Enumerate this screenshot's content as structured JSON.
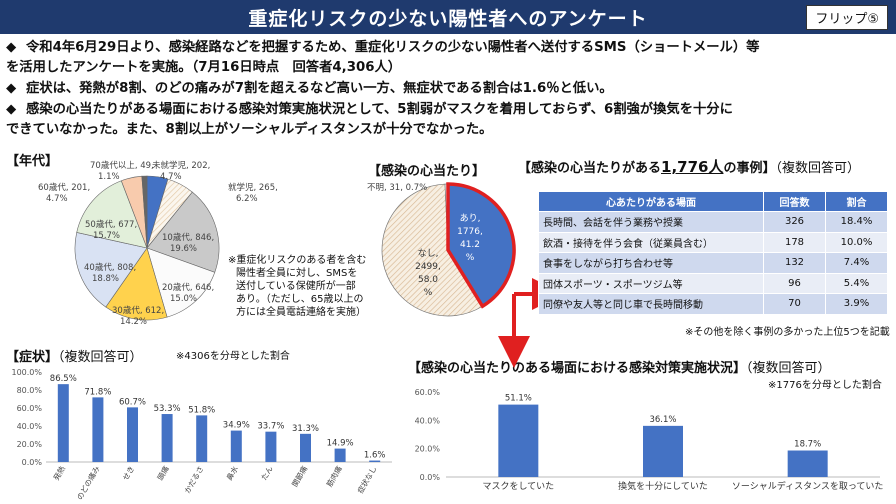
{
  "header": {
    "title": "重症化リスクの少ない陽性者へのアンケート",
    "flip_label": "フリップ⑤"
  },
  "bullets": [
    {
      "line1": "令和4年6月29日より、感染経路などを把握するため、重症化リスクの少ない陽性者へ送付するSMS（ショートメール）等",
      "line2": "を活用したアンケートを実施。（7月16日時点　回答者4,306人）"
    },
    {
      "line1": "症状は、発熱が8割、のどの痛みが7割を超えるなど高い一方、無症状である割合は1.6％と低い。"
    },
    {
      "line1": "感染の心当たりがある場面における感染対策実施状況として、5割弱がマスクを着用しておらず、6割強が換気を十分に",
      "line2": "できていなかった。また、8割以上がソーシャルディスタンスが十分でなかった。"
    }
  ],
  "sections": {
    "age": "【年代】",
    "infection": "【感染の心当たり】",
    "cases_pre": "【感染の心当たりがある",
    "cases_num": "1,776人",
    "cases_post": "の事例】",
    "cases_note": "（複数回答可）",
    "symptom": "【症状】",
    "symptom_note": "（複数回答可）",
    "symptom_sub": "※4306を分母とした割合",
    "measures": "【感染の心当たりのある場面における感染対策実施状況】",
    "measures_note": "（複数回答可）",
    "measures_sub": "※1776を分母とした割合"
  },
  "age_note": [
    "※重症化リスクのある者を含む",
    "陽性者全員に対し、SMSを",
    "送付している保健所が一部",
    "あり。（ただし、65歳以上の",
    "方には全員電話連絡を実施）"
  ],
  "table": {
    "headers": [
      "心あたりがある場面",
      "回答数",
      "割合"
    ],
    "rows": [
      [
        "長時間、会話を伴う業務や授業",
        "326",
        "18.4%"
      ],
      [
        "飲酒・接待を伴う会食（従業員含む）",
        "178",
        "10.0%"
      ],
      [
        "食事をしながら打ち合わせ等",
        "132",
        "7.4%"
      ],
      [
        "団体スポーツ・スポーツジム等",
        "96",
        "5.4%"
      ],
      [
        "同僚や友人等と同じ車で長時間移動",
        "70",
        "3.9%"
      ]
    ],
    "footnote": "※その他を除く事例の多かった上位5つを記載"
  },
  "colors": {
    "header": "#1f3a6e",
    "accent": "#1f3a6e",
    "red": "#e02020",
    "blue": "#4472c4"
  },
  "chart_data": [
    {
      "type": "pie",
      "title": "【年代】",
      "slices": [
        {
          "name": "未就学児",
          "value": 202,
          "pct": "4.7%",
          "label": "未就学児, 202, 4.7%"
        },
        {
          "name": "就学児",
          "value": 265,
          "pct": "6.2%",
          "label": "就学児, 265, 6.2%"
        },
        {
          "name": "10歳代",
          "value": 846,
          "pct": "19.6%",
          "label": "10歳代, 846, 19.6%"
        },
        {
          "name": "20歳代",
          "value": 646,
          "pct": "15.0%",
          "label": "20歳代, 646, 15.0%"
        },
        {
          "name": "30歳代",
          "value": 612,
          "pct": "14.2%",
          "label": "30歳代, 612, 14.2%"
        },
        {
          "name": "40歳代",
          "value": 808,
          "pct": "18.8%",
          "label": "40歳代, 808, 18.8%"
        },
        {
          "name": "50歳代",
          "value": 677,
          "pct": "15.7%",
          "label": "50歳代, 677, 15.7%"
        },
        {
          "name": "60歳代",
          "value": 201,
          "pct": "4.7%",
          "label": "60歳代, 201, 4.7%"
        },
        {
          "name": "70歳代以上",
          "value": 49,
          "pct": "1.1%",
          "label": "70歳代以上, 49, 1.1%"
        }
      ]
    },
    {
      "type": "pie",
      "title": "【感染の心当たり】",
      "slices": [
        {
          "name": "あり",
          "value": 1776,
          "pct": "41.2%"
        },
        {
          "name": "なし",
          "value": 2499,
          "pct": "58.0%"
        },
        {
          "name": "不明",
          "value": 31,
          "pct": "0.7%"
        }
      ]
    },
    {
      "type": "bar",
      "title": "【症状】",
      "categories": [
        "発熱",
        "のどの痛み",
        "せき",
        "頭痛",
        "かだるさ",
        "鼻水",
        "たん",
        "関節痛",
        "筋肉痛",
        "症状なし"
      ],
      "values": [
        86.5,
        71.8,
        60.7,
        53.3,
        51.8,
        34.9,
        33.7,
        31.3,
        14.9,
        1.6
      ],
      "labels": [
        "86.5%",
        "71.8%",
        "60.7%",
        "53.3%",
        "51.8%",
        "34.9%",
        "33.7%",
        "31.3%",
        "14.9%",
        "1.6%"
      ],
      "yticks": [
        "100.0%",
        "80.0%",
        "60.0%",
        "40.0%",
        "20.0%",
        "0.0%"
      ],
      "ylim": [
        0,
        100
      ]
    },
    {
      "type": "bar",
      "title": "【感染の心当たりのある場面における感染対策実施状況】",
      "categories": [
        "マスクをしていた",
        "換気を十分にしていた",
        "ソーシャルディスタンスを取っていた"
      ],
      "values": [
        51.1,
        36.1,
        18.7
      ],
      "labels": [
        "51.1%",
        "36.1%",
        "18.7%"
      ],
      "yticks": [
        "60.0%",
        "40.0%",
        "20.0%",
        "0.0%"
      ],
      "ylim": [
        0,
        60
      ]
    }
  ]
}
